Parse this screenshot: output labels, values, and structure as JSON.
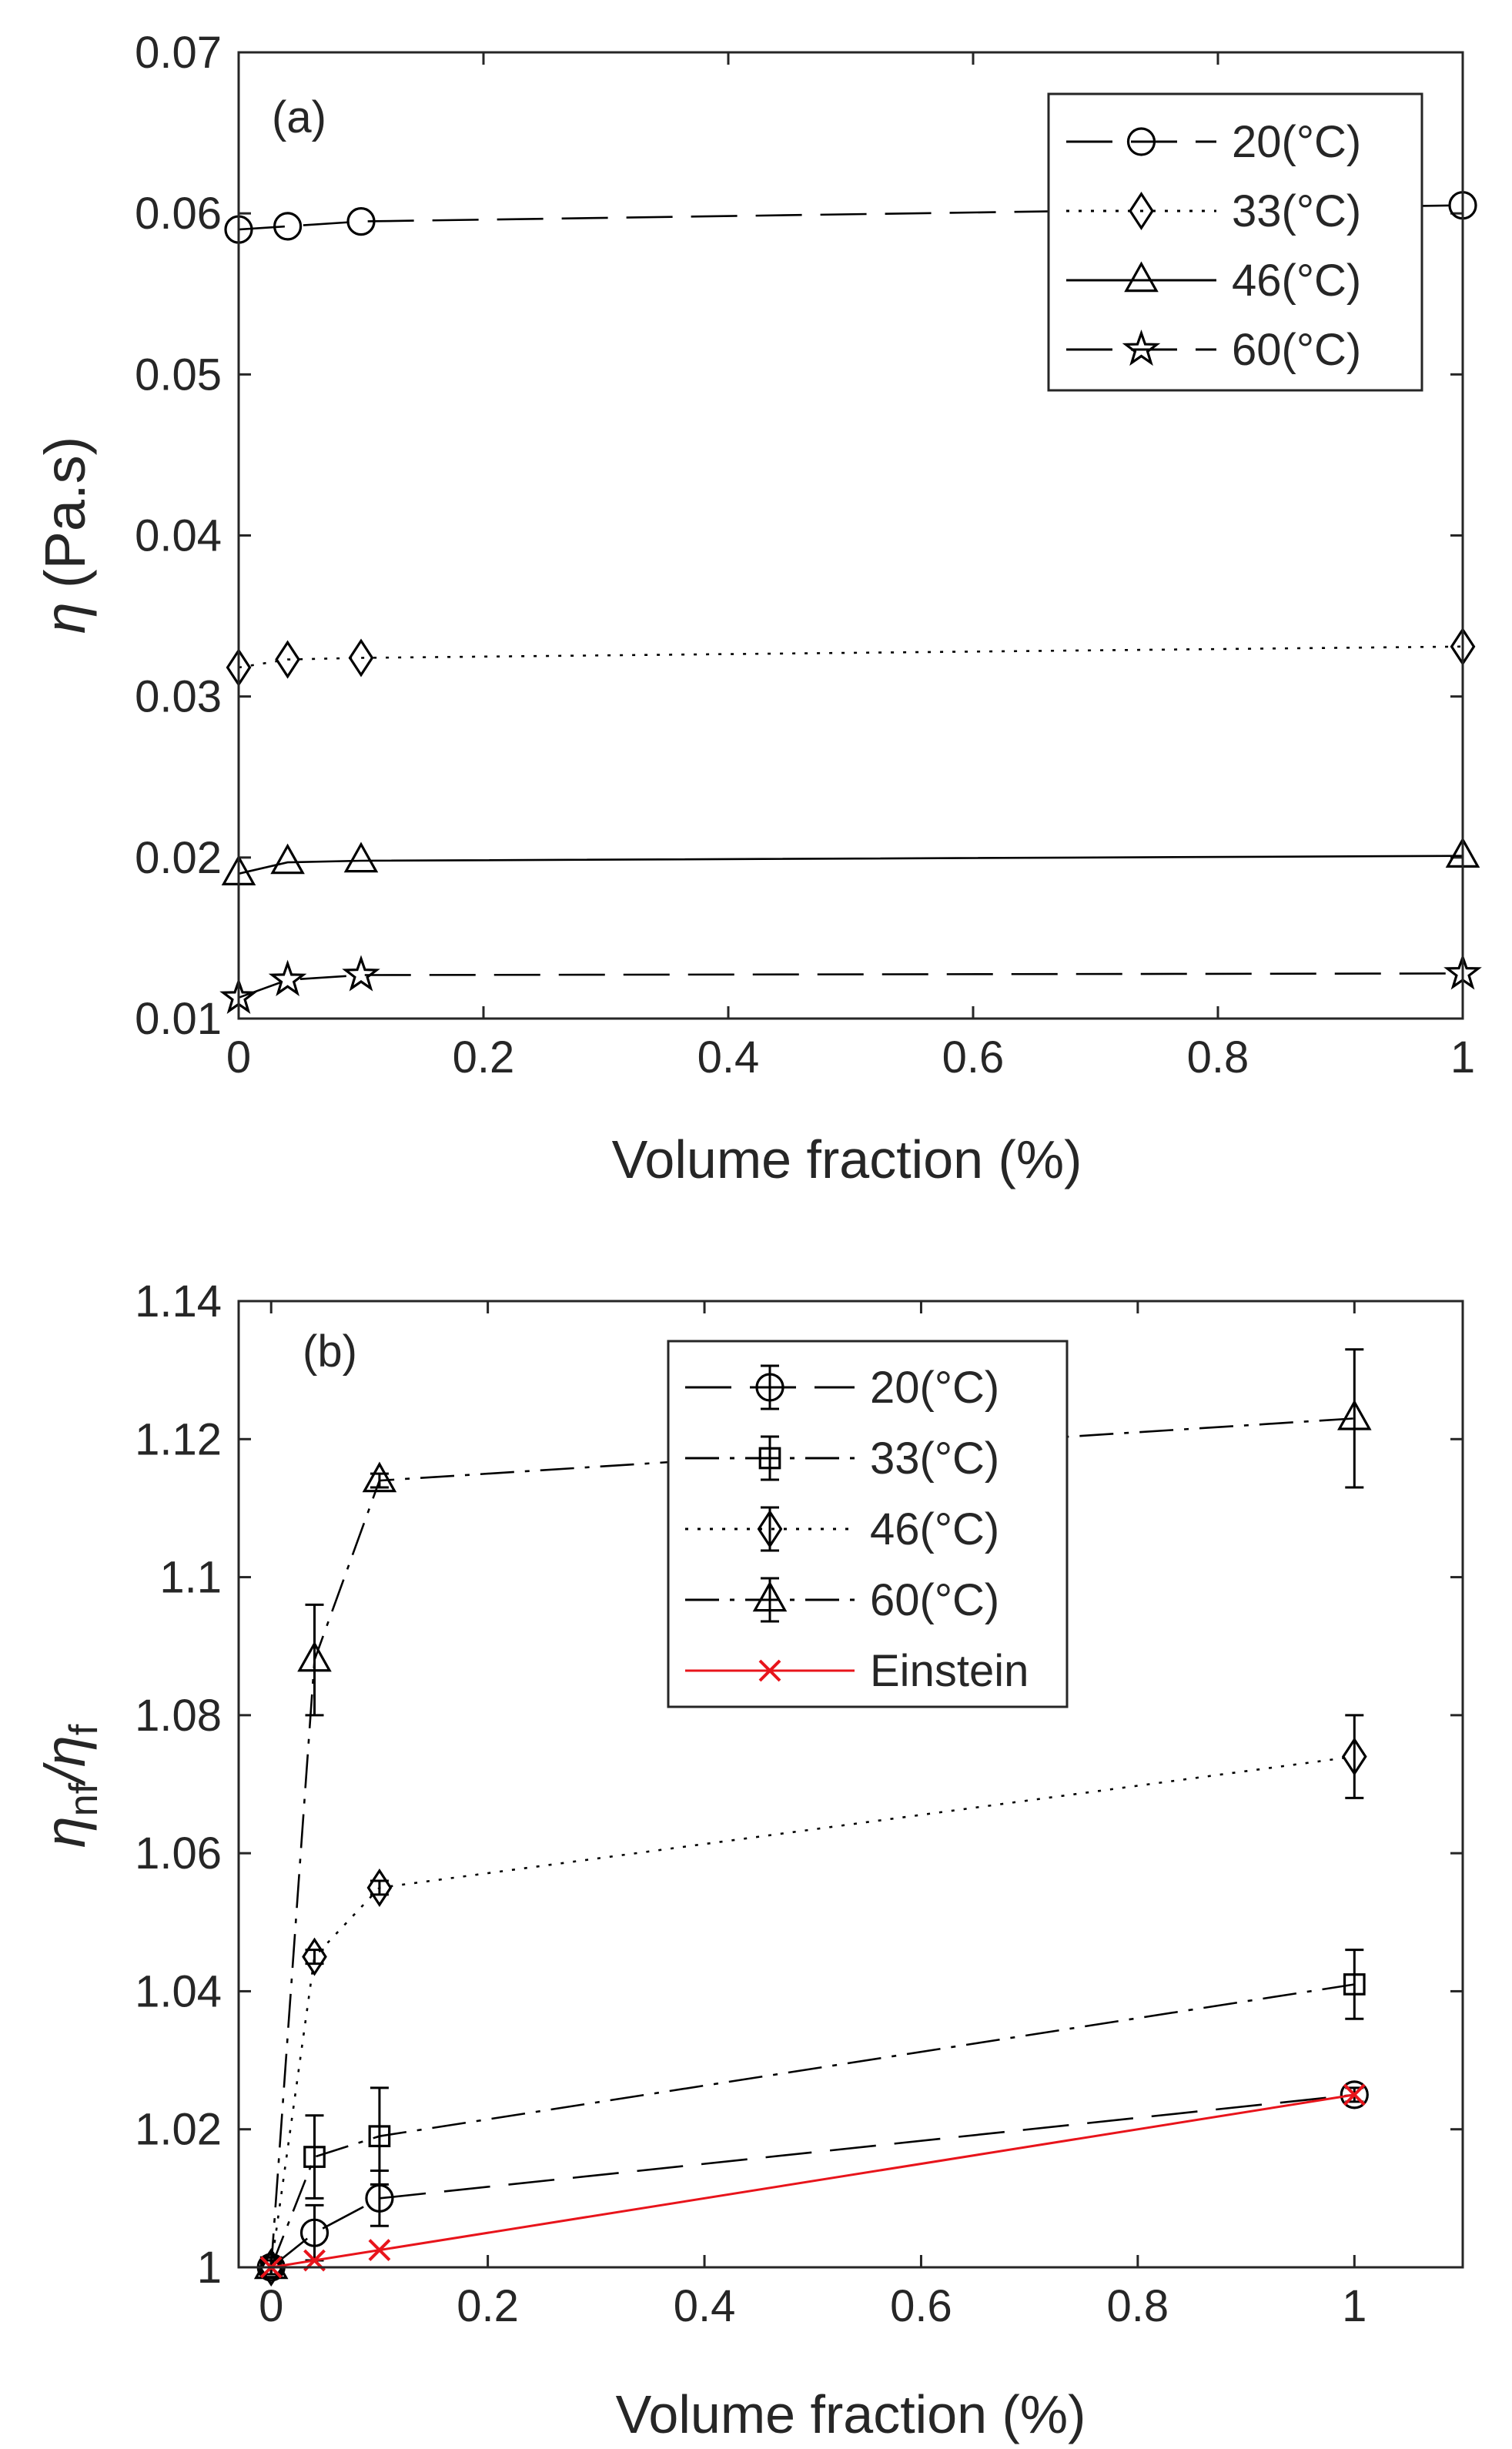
{
  "chart_data": [
    {
      "type": "line",
      "panel_label": "(a)",
      "xlabel": "Volume fraction (%)",
      "ylabel_symbol": "η",
      "ylabel_unit": "(Pa.s)",
      "xlim": [
        0,
        1
      ],
      "ylim": [
        0.01,
        0.07
      ],
      "x_ticks": [
        0,
        0.2,
        0.4,
        0.6,
        0.8,
        1
      ],
      "x_tick_labels": [
        "0",
        "0.2",
        "0.4",
        "0.6",
        "0.8",
        "1"
      ],
      "y_ticks": [
        0.01,
        0.02,
        0.03,
        0.04,
        0.05,
        0.06,
        0.07
      ],
      "y_tick_labels": [
        "0.01",
        "0.02",
        "0.03",
        "0.04",
        "0.05",
        "0.06",
        "0.07"
      ],
      "legend_position": "top-right",
      "x": [
        0,
        0.04,
        0.1,
        1
      ],
      "series": [
        {
          "name": "20(°C)",
          "marker": "circle",
          "line": "longdash",
          "color": "#000000",
          "values": [
            0.059,
            0.0592,
            0.0595,
            0.0605
          ]
        },
        {
          "name": "33(°C)",
          "marker": "diamond",
          "line": "dotted",
          "color": "#000000",
          "values": [
            0.0318,
            0.0323,
            0.0324,
            0.0331
          ]
        },
        {
          "name": "46(°C)",
          "marker": "triangle",
          "line": "solid",
          "color": "#000000",
          "values": [
            0.019,
            0.0197,
            0.0198,
            0.0201
          ]
        },
        {
          "name": "60(°C)",
          "marker": "star",
          "line": "longdash",
          "color": "#000000",
          "values": [
            0.0113,
            0.0124,
            0.0127,
            0.0128
          ]
        }
      ]
    },
    {
      "type": "line",
      "panel_label": "(b)",
      "xlabel": "Volume fraction (%)",
      "ylabel_main": "η",
      "ylabel_sub1": "nf",
      "ylabel_sep": "/η",
      "ylabel_sub2": "f",
      "xlim": [
        -0.03,
        1.1
      ],
      "ylim": [
        1,
        1.14
      ],
      "x_ticks": [
        0,
        0.2,
        0.4,
        0.6,
        0.8,
        1
      ],
      "x_tick_labels": [
        "0",
        "0.2",
        "0.4",
        "0.6",
        "0.8",
        "1"
      ],
      "y_ticks": [
        1,
        1.02,
        1.04,
        1.06,
        1.08,
        1.1,
        1.12,
        1.14
      ],
      "y_tick_labels": [
        "1",
        "1.02",
        "1.04",
        "1.06",
        "1.08",
        "1.1",
        "1.12",
        "1.14"
      ],
      "legend_position": "top-center",
      "x": [
        0,
        0.04,
        0.1,
        1
      ],
      "series": [
        {
          "name": "20(°C)",
          "marker": "circle",
          "line": "longdash",
          "color": "#000000",
          "values": [
            1.0,
            1.005,
            1.01,
            1.025
          ],
          "errors": [
            0.001,
            0.004,
            0.004,
            0.001
          ]
        },
        {
          "name": "33(°C)",
          "marker": "square",
          "line": "dashdot",
          "color": "#000000",
          "values": [
            1.0,
            1.016,
            1.019,
            1.041
          ],
          "errors": [
            0.001,
            0.006,
            0.007,
            0.005
          ]
        },
        {
          "name": "46(°C)",
          "marker": "diamond",
          "line": "dotted",
          "color": "#000000",
          "values": [
            1.0,
            1.045,
            1.055,
            1.074
          ],
          "errors": [
            0.001,
            0.001,
            0.001,
            0.006
          ]
        },
        {
          "name": "60(°C)",
          "marker": "triangle",
          "line": "dashdot",
          "color": "#000000",
          "values": [
            1.0,
            1.088,
            1.114,
            1.123
          ],
          "errors": [
            0.001,
            0.008,
            0.001,
            0.01
          ]
        },
        {
          "name": "Einstein",
          "marker": "x",
          "line": "solid",
          "color": "#e8141b",
          "values": [
            1.0,
            1.001,
            1.0025,
            1.025
          ],
          "errors": null
        }
      ]
    }
  ]
}
